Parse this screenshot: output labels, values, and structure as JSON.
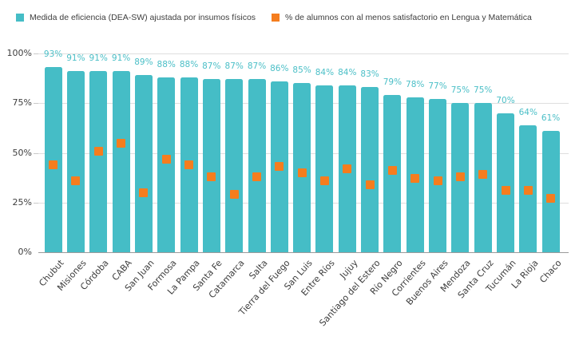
{
  "chart_data": {
    "type": "bar",
    "title": "",
    "xlabel": "",
    "ylabel": "",
    "ylim": [
      0,
      100
    ],
    "grid": true,
    "legend_position": "top",
    "x_label_rotation": -48,
    "y_ticks": [
      {
        "value": 0,
        "label": "0%"
      },
      {
        "value": 25,
        "label": "25%"
      },
      {
        "value": 50,
        "label": "50%"
      },
      {
        "value": 75,
        "label": "75%"
      },
      {
        "value": 100,
        "label": "100%"
      }
    ],
    "categories": [
      "Chubut",
      "Misiones",
      "Córdoba",
      "CABA",
      "San Juan",
      "Formosa",
      "La Pampa",
      "Santa Fe",
      "Catamarca",
      "Salta",
      "Tierra del Fuego",
      "San Luis",
      "Entre Ríos",
      "Jujuy",
      "Santiago del Estero",
      "Río Negro",
      "Corrientes",
      "Buenos Aires",
      "Mendoza",
      "Santa Cruz",
      "Tucumán",
      "La Rioja",
      "Chaco"
    ],
    "series": [
      {
        "name": "Medida de eficiencia (DEA-SW) ajustada por insumos físicos",
        "type": "bar",
        "color": "#45bdc6",
        "label_color": "#4bbfc7",
        "values": [
          93,
          91,
          91,
          91,
          89,
          88,
          88,
          87,
          87,
          87,
          86,
          85,
          84,
          84,
          83,
          79,
          78,
          77,
          75,
          75,
          70,
          64,
          61
        ],
        "data_labels": [
          "93%",
          "91%",
          "91%",
          "91%",
          "89%",
          "88%",
          "88%",
          "87%",
          "87%",
          "87%",
          "86%",
          "85%",
          "84%",
          "84%",
          "83%",
          "79%",
          "78%",
          "77%",
          "75%",
          "75%",
          "70%",
          "64%",
          "61%"
        ]
      },
      {
        "name": "% de alumnos con al menos satisfactorio en Lengua y Matemática",
        "type": "scatter",
        "marker": "square",
        "color": "#f57d1e",
        "values": [
          44,
          36,
          51,
          55,
          30,
          47,
          44,
          38,
          29,
          38,
          43,
          40,
          36,
          42,
          34,
          41,
          37,
          36,
          38,
          39,
          31,
          31,
          27
        ]
      }
    ]
  }
}
